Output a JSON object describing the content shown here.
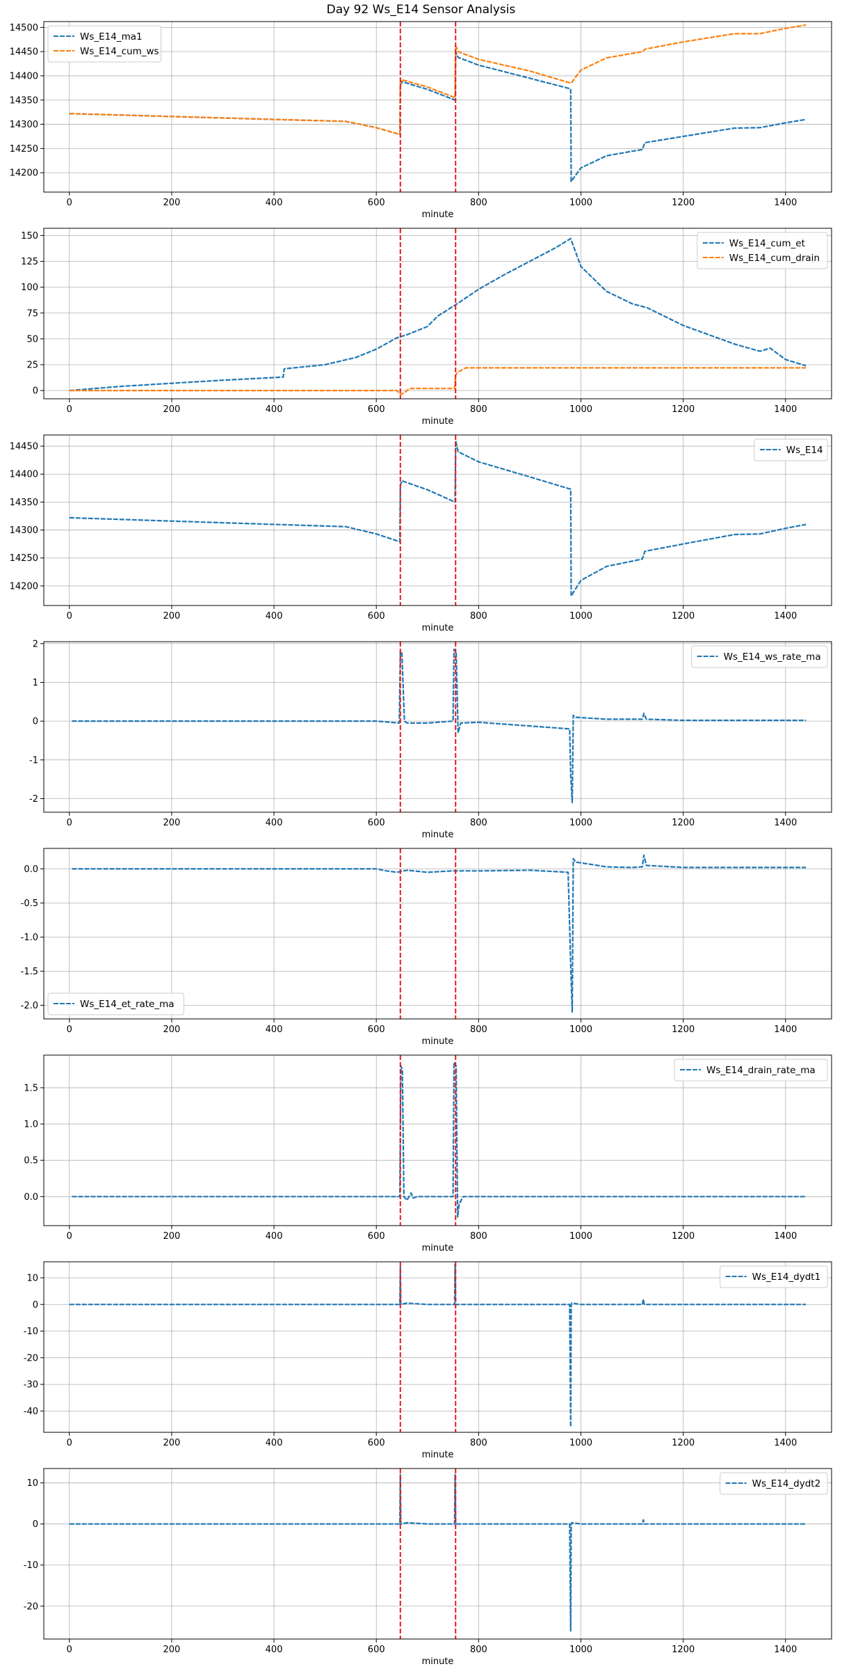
{
  "figure": {
    "title": "Day 92 Ws_E14 Sensor Analysis"
  },
  "colors": {
    "blue": "#1f77b4",
    "orange": "#ff7f0e",
    "vline": "#e41a1c",
    "grid": "#b0b0b0"
  },
  "chart_data": [
    {
      "type": "line",
      "xlabel": "minute",
      "xlim": [
        -50,
        1490
      ],
      "ylim": [
        14160,
        14512
      ],
      "xticks": [
        0,
        200,
        400,
        600,
        800,
        1000,
        1200,
        1400
      ],
      "yticks": [
        14200,
        14250,
        14300,
        14350,
        14400,
        14450,
        14500
      ],
      "grid": true,
      "legend_position": "upper-left",
      "vlines": [
        647,
        755
      ],
      "series": [
        {
          "name": "Ws_E14_ma1",
          "color": "#1f77b4",
          "x": [
            0,
            200,
            400,
            540,
            600,
            646,
            647,
            650,
            700,
            754,
            755,
            760,
            800,
            900,
            980,
            981,
            1000,
            1050,
            1120,
            1125,
            1200,
            1300,
            1350,
            1400,
            1440
          ],
          "y": [
            14322,
            14316,
            14310,
            14306,
            14293,
            14279,
            14380,
            14388,
            14372,
            14350,
            14450,
            14438,
            14422,
            14395,
            14373,
            14182,
            14210,
            14235,
            14248,
            14262,
            14275,
            14292,
            14293,
            14303,
            14310
          ]
        },
        {
          "name": "Ws_E14_cum_ws",
          "color": "#ff7f0e",
          "x": [
            0,
            200,
            400,
            540,
            600,
            646,
            647,
            650,
            700,
            754,
            755,
            760,
            800,
            900,
            980,
            981,
            1000,
            1050,
            1120,
            1125,
            1200,
            1300,
            1350,
            1400,
            1440
          ],
          "y": [
            14322,
            14316,
            14310,
            14306,
            14293,
            14279,
            14385,
            14392,
            14377,
            14355,
            14462,
            14450,
            14434,
            14410,
            14385,
            14385,
            14412,
            14437,
            14450,
            14455,
            14470,
            14487,
            14487,
            14498,
            14505
          ]
        }
      ]
    },
    {
      "type": "line",
      "xlabel": "minute",
      "xlim": [
        -50,
        1490
      ],
      "ylim": [
        -8,
        157
      ],
      "xticks": [
        0,
        200,
        400,
        600,
        800,
        1000,
        1200,
        1400
      ],
      "yticks": [
        0,
        25,
        50,
        75,
        100,
        125,
        150
      ],
      "grid": true,
      "legend_position": "upper-right",
      "vlines": [
        647,
        755
      ],
      "series": [
        {
          "name": "Ws_E14_cum_et",
          "color": "#1f77b4",
          "x": [
            0,
            100,
            200,
            300,
            418,
            420,
            500,
            560,
            600,
            640,
            660,
            700,
            720,
            755,
            800,
            850,
            900,
            950,
            980,
            1000,
            1050,
            1100,
            1130,
            1200,
            1300,
            1350,
            1370,
            1400,
            1440
          ],
          "y": [
            0,
            4,
            7,
            10,
            13,
            21,
            25,
            32,
            40,
            51,
            54,
            62,
            72,
            83,
            98,
            112,
            125,
            138,
            147,
            120,
            96,
            84,
            80,
            63,
            45,
            38,
            41,
            30,
            24
          ]
        },
        {
          "name": "Ws_E14_cum_drain",
          "color": "#ff7f0e",
          "x": [
            0,
            200,
            400,
            640,
            648,
            655,
            665,
            700,
            753,
            755,
            760,
            775,
            800,
            1000,
            1200,
            1440
          ],
          "y": [
            0,
            0,
            0,
            0,
            -4,
            -2,
            2,
            2,
            2,
            15,
            18,
            22,
            22,
            22,
            22,
            22
          ]
        }
      ]
    },
    {
      "type": "line",
      "xlabel": "minute",
      "xlim": [
        -50,
        1490
      ],
      "ylim": [
        14165,
        14470
      ],
      "xticks": [
        0,
        200,
        400,
        600,
        800,
        1000,
        1200,
        1400
      ],
      "yticks": [
        14200,
        14250,
        14300,
        14350,
        14400,
        14450
      ],
      "grid": true,
      "legend_position": "upper-right",
      "vlines": [
        647,
        755
      ],
      "series": [
        {
          "name": "Ws_E14",
          "color": "#1f77b4",
          "x": [
            0,
            200,
            400,
            540,
            600,
            646,
            647,
            650,
            700,
            754,
            755,
            760,
            800,
            900,
            980,
            981,
            1000,
            1050,
            1120,
            1125,
            1200,
            1300,
            1350,
            1400,
            1440
          ],
          "y": [
            14322,
            14316,
            14310,
            14306,
            14293,
            14279,
            14380,
            14388,
            14372,
            14350,
            14460,
            14440,
            14422,
            14395,
            14373,
            14182,
            14210,
            14235,
            14248,
            14262,
            14275,
            14292,
            14293,
            14303,
            14310
          ]
        }
      ]
    },
    {
      "type": "line",
      "xlabel": "minute",
      "xlim": [
        -50,
        1490
      ],
      "ylim": [
        -2.35,
        2.05
      ],
      "xticks": [
        0,
        200,
        400,
        600,
        800,
        1000,
        1200,
        1400
      ],
      "yticks": [
        -2,
        -1,
        0,
        1,
        2
      ],
      "ytick_labels": [
        "-2",
        "-1",
        "0",
        "1",
        "2"
      ],
      "grid": true,
      "legend_position": "upper-right",
      "vlines": [
        647,
        755
      ],
      "series": [
        {
          "name": "Ws_E14_ws_rate_ma",
          "color": "#1f77b4",
          "x": [
            5,
            600,
            645,
            647,
            650,
            655,
            660,
            700,
            750,
            752,
            756,
            760,
            765,
            800,
            978,
            980,
            983,
            985,
            990,
            1050,
            1120,
            1123,
            1128,
            1200,
            1440
          ],
          "y": [
            0,
            0,
            -0.05,
            1.8,
            1.75,
            0,
            -0.05,
            -0.05,
            0,
            1.85,
            1.8,
            -0.3,
            -0.05,
            -0.03,
            -0.2,
            -1.4,
            -2.1,
            0.15,
            0.1,
            0.05,
            0.05,
            0.2,
            0.05,
            0.02,
            0.02
          ]
        }
      ]
    },
    {
      "type": "line",
      "xlabel": "minute",
      "xlim": [
        -50,
        1490
      ],
      "ylim": [
        -2.2,
        0.3
      ],
      "xticks": [
        0,
        200,
        400,
        600,
        800,
        1000,
        1200,
        1400
      ],
      "yticks": [
        -2.0,
        -1.5,
        -1.0,
        -0.5,
        0.0
      ],
      "ytick_labels": [
        "-2.0",
        "-1.5",
        "-1.0",
        "-0.5",
        "0.0"
      ],
      "grid": true,
      "legend_position": "lower-left",
      "vlines": [
        647,
        755
      ],
      "series": [
        {
          "name": "Ws_E14_et_rate_ma",
          "color": "#1f77b4",
          "x": [
            5,
            300,
            600,
            620,
            640,
            660,
            700,
            750,
            800,
            900,
            975,
            980,
            983,
            985,
            990,
            1050,
            1100,
            1120,
            1123,
            1128,
            1200,
            1440
          ],
          "y": [
            0,
            0,
            0,
            -0.03,
            -0.05,
            -0.02,
            -0.05,
            -0.03,
            -0.03,
            -0.02,
            -0.05,
            -1.4,
            -2.1,
            0.15,
            0.1,
            0.03,
            0.02,
            0.03,
            0.2,
            0.05,
            0.02,
            0.02
          ]
        }
      ]
    },
    {
      "type": "line",
      "xlabel": "minute",
      "xlim": [
        -50,
        1490
      ],
      "ylim": [
        -0.4,
        1.95
      ],
      "xticks": [
        0,
        200,
        400,
        600,
        800,
        1000,
        1200,
        1400
      ],
      "yticks": [
        0.0,
        0.5,
        1.0,
        1.5
      ],
      "ytick_labels": [
        "0.0",
        "0.5",
        "1.0",
        "1.5"
      ],
      "grid": true,
      "legend_position": "upper-right",
      "vlines": [
        647,
        755
      ],
      "series": [
        {
          "name": "Ws_E14_drain_rate_ma",
          "color": "#1f77b4",
          "x": [
            5,
            640,
            646,
            648,
            651,
            654,
            660,
            668,
            672,
            680,
            750,
            752,
            756,
            759,
            762,
            770,
            780,
            1440
          ],
          "y": [
            0,
            0,
            0,
            1.8,
            1.75,
            0,
            -0.05,
            0.05,
            -0.02,
            0,
            0,
            1.85,
            1.8,
            -0.28,
            -0.1,
            0,
            0,
            0
          ]
        }
      ]
    },
    {
      "type": "line",
      "xlabel": "minute",
      "xlim": [
        -50,
        1490
      ],
      "ylim": [
        -48,
        16
      ],
      "xticks": [
        0,
        200,
        400,
        600,
        800,
        1000,
        1200,
        1400
      ],
      "yticks": [
        -40,
        -30,
        -20,
        -10,
        0,
        10
      ],
      "ytick_labels": [
        "-40",
        "-30",
        "-20",
        "-10",
        "0",
        "10"
      ],
      "grid": true,
      "legend_position": "upper-right",
      "vlines": [
        647,
        755
      ],
      "series": [
        {
          "name": "Ws_E14_dydt1",
          "color": "#1f77b4",
          "x": [
            0,
            640,
            646,
            647,
            648,
            660,
            700,
            753,
            754,
            755,
            756,
            800,
            978,
            980,
            981,
            982,
            1000,
            1120,
            1122,
            1124,
            1200,
            1440
          ],
          "y": [
            0,
            0,
            0,
            14,
            0,
            0.5,
            0,
            0,
            15,
            0,
            0,
            0,
            0,
            -46,
            0,
            0.5,
            0,
            0,
            2,
            0,
            0,
            0
          ]
        }
      ]
    },
    {
      "type": "line",
      "xlabel": "minute",
      "xlim": [
        -50,
        1490
      ],
      "ylim": [
        -28,
        13.5
      ],
      "xticks": [
        0,
        200,
        400,
        600,
        800,
        1000,
        1200,
        1400
      ],
      "yticks": [
        -20,
        -10,
        0,
        10
      ],
      "ytick_labels": [
        "-20",
        "-10",
        "0",
        "10"
      ],
      "grid": true,
      "legend_position": "upper-right",
      "vlines": [
        647,
        755
      ],
      "series": [
        {
          "name": "Ws_E14_dydt2",
          "color": "#1f77b4",
          "x": [
            0,
            640,
            646,
            647,
            648,
            660,
            700,
            753,
            754,
            755,
            756,
            800,
            978,
            980,
            981,
            982,
            1000,
            1120,
            1122,
            1124,
            1200,
            1440
          ],
          "y": [
            0,
            0,
            0,
            12,
            0,
            0.3,
            0,
            0,
            12,
            0,
            0,
            0,
            0,
            -26,
            0,
            0.3,
            0,
            0,
            1,
            0,
            0,
            0
          ]
        }
      ]
    }
  ]
}
